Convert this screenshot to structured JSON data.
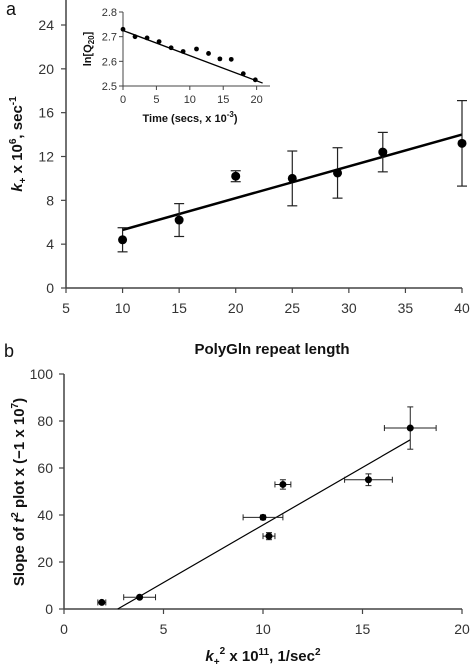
{
  "chart_data": [
    {
      "panel": "a",
      "type": "scatter",
      "xlabel": "PolyGln repeat length",
      "ylabel": "k+ x 10^6, sec^-1",
      "xlim": [
        5,
        40
      ],
      "ylim": [
        0,
        24
      ],
      "xticks": [
        5,
        10,
        15,
        20,
        25,
        30,
        35,
        40
      ],
      "yticks": [
        0,
        4,
        8,
        12,
        16,
        20,
        24
      ],
      "grid": false,
      "points": [
        {
          "x": 10,
          "y": 4.4,
          "err": 1.1
        },
        {
          "x": 15,
          "y": 6.2,
          "err": 1.5
        },
        {
          "x": 20,
          "y": 10.2,
          "err": 0.5
        },
        {
          "x": 25,
          "y": 10.0,
          "err": 2.5
        },
        {
          "x": 29,
          "y": 10.5,
          "err": 2.3
        },
        {
          "x": 33,
          "y": 12.4,
          "err": 1.8
        },
        {
          "x": 40,
          "y": 13.2,
          "err": 3.9
        }
      ],
      "fit": {
        "x": [
          10,
          40
        ],
        "y": [
          5.3,
          14.0
        ]
      }
    },
    {
      "panel": "a-inset",
      "type": "scatter",
      "xlabel": "Time (secs, x 10^-3)",
      "ylabel": "ln[Q20]",
      "xlim": [
        0,
        22
      ],
      "ylim": [
        2.5,
        2.8
      ],
      "xticks": [
        0,
        5,
        10,
        15,
        20
      ],
      "yticks": [
        2.5,
        2.6,
        2.7,
        2.8
      ],
      "grid": false,
      "points": [
        {
          "x": 0,
          "y": 2.73
        },
        {
          "x": 1.8,
          "y": 2.7
        },
        {
          "x": 3.6,
          "y": 2.695
        },
        {
          "x": 5.4,
          "y": 2.68
        },
        {
          "x": 7.2,
          "y": 2.655
        },
        {
          "x": 9,
          "y": 2.64
        },
        {
          "x": 11,
          "y": 2.65
        },
        {
          "x": 12.8,
          "y": 2.632
        },
        {
          "x": 14.5,
          "y": 2.61
        },
        {
          "x": 16.2,
          "y": 2.608
        },
        {
          "x": 18,
          "y": 2.55
        },
        {
          "x": 19.8,
          "y": 2.525
        }
      ],
      "fit": {
        "x": [
          0,
          20
        ],
        "y": [
          2.725,
          2.52
        ]
      }
    },
    {
      "panel": "b",
      "type": "scatter",
      "xlabel": "k+^2 x 10^11, 1/sec^2",
      "ylabel": "Slope of t^2 plot x (−1 x 10^7)",
      "xlim": [
        0,
        20
      ],
      "ylim": [
        0,
        100
      ],
      "xticks": [
        0,
        5,
        10,
        15,
        20
      ],
      "yticks": [
        0,
        20,
        40,
        60,
        80,
        100
      ],
      "grid": false,
      "points": [
        {
          "x": 1.9,
          "y": 2.8,
          "xerr": 0.2,
          "yerr": 0.5
        },
        {
          "x": 3.8,
          "y": 5,
          "xerr": 0.8,
          "yerr": 0.5
        },
        {
          "x": 10.0,
          "y": 39,
          "xerr": 1.0,
          "yerr": 1.0
        },
        {
          "x": 10.3,
          "y": 31,
          "xerr": 0.3,
          "yerr": 1.5
        },
        {
          "x": 11.0,
          "y": 53,
          "xerr": 0.4,
          "yerr": 2.0
        },
        {
          "x": 15.3,
          "y": 55,
          "xerr": 1.2,
          "yerr": 2.5
        },
        {
          "x": 17.4,
          "y": 77,
          "xerr": 1.3,
          "yerr": 9.0
        }
      ],
      "fit": {
        "x": [
          2.7,
          17.4
        ],
        "y": [
          0,
          72
        ]
      }
    }
  ],
  "labels": {
    "panel_a": "a",
    "panel_b": "b",
    "a_xlabel": "PolyGln repeat length",
    "a_ylabel_k": "k",
    "a_ylabel_sub": "+",
    "a_ylabel_rest": " x 10",
    "a_ylabel_exp": "6",
    "a_ylabel_unit": ", sec",
    "a_ylabel_unit_exp": "-1",
    "inset_xlabel_main": "Time (secs, x 10",
    "inset_xlabel_exp": "-3",
    "inset_xlabel_close": ")",
    "inset_ylabel_main": "ln[Q",
    "inset_ylabel_sub": "20",
    "inset_ylabel_close": "]",
    "b_ylabel_main": "Slope of ",
    "b_ylabel_t": "t",
    "b_ylabel_t_exp": "2",
    "b_ylabel_mid": " plot x (−1 x 10",
    "b_ylabel_exp": "7",
    "b_ylabel_close": ")",
    "b_xlabel_k": "k",
    "b_xlabel_sub": "+",
    "b_xlabel_exp1": "2",
    "b_xlabel_mid": " x 10",
    "b_xlabel_exp2": "11",
    "b_xlabel_unit": ",  1/sec",
    "b_xlabel_unit_exp": "2"
  }
}
